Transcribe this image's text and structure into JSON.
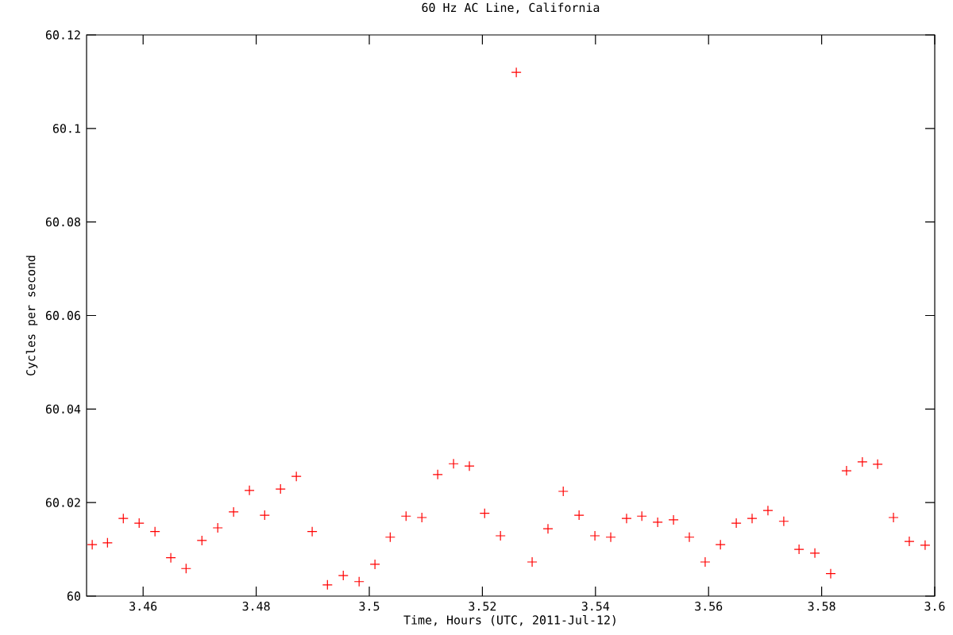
{
  "chart_data": {
    "type": "scatter",
    "title": "60 Hz AC Line, California",
    "xlabel": "Time, Hours (UTC, 2011-Jul-12)",
    "ylabel": "Cycles per second",
    "xlim": [
      3.45,
      3.6
    ],
    "ylim": [
      60,
      60.12
    ],
    "xticks": [
      3.46,
      3.48,
      3.5,
      3.52,
      3.54,
      3.56,
      3.58,
      3.6
    ],
    "yticks": [
      60,
      60.02,
      60.04,
      60.06,
      60.08,
      60.1,
      60.12
    ],
    "marker": "cross",
    "series": [
      {
        "color": "#ff0000",
        "x": [
          3.451,
          3.4537,
          3.4565,
          3.4593,
          3.4621,
          3.4649,
          3.4676,
          3.4704,
          3.4732,
          3.476,
          3.4788,
          3.4815,
          3.4843,
          3.4871,
          3.4899,
          3.4926,
          3.4954,
          3.4982,
          3.501,
          3.5037,
          3.5065,
          3.5093,
          3.5121,
          3.5149,
          3.5177,
          3.5204,
          3.5232,
          3.526,
          3.5288,
          3.5316,
          3.5343,
          3.5371,
          3.5399,
          3.5427,
          3.5455,
          3.5482,
          3.551,
          3.5538,
          3.5566,
          3.5594,
          3.5621,
          3.5649,
          3.5677,
          3.5705,
          3.5733,
          3.576,
          3.5788,
          3.5816,
          3.5844,
          3.5872,
          3.5899,
          3.5927,
          3.5955,
          3.5983
        ],
        "values": [
          60.011,
          60.0114,
          60.0166,
          60.0156,
          60.0138,
          60.0082,
          60.0059,
          60.0119,
          60.0146,
          60.018,
          60.0226,
          60.0173,
          60.0229,
          60.0256,
          60.0138,
          60.0024,
          60.0044,
          60.0031,
          60.0068,
          60.0126,
          60.0171,
          60.0168,
          60.026,
          60.0283,
          60.0278,
          60.0177,
          60.0129,
          60.112,
          60.0073,
          60.0144,
          60.0224,
          60.0173,
          60.0129,
          60.0126,
          60.0166,
          60.0171,
          60.0158,
          60.0163,
          60.0126,
          60.0073,
          60.011,
          60.0156,
          60.0166,
          60.0183,
          60.016,
          60.01,
          60.0092,
          60.0048,
          60.0268,
          60.0287,
          60.0282,
          60.0168,
          60.0117,
          60.0109
        ]
      }
    ]
  }
}
